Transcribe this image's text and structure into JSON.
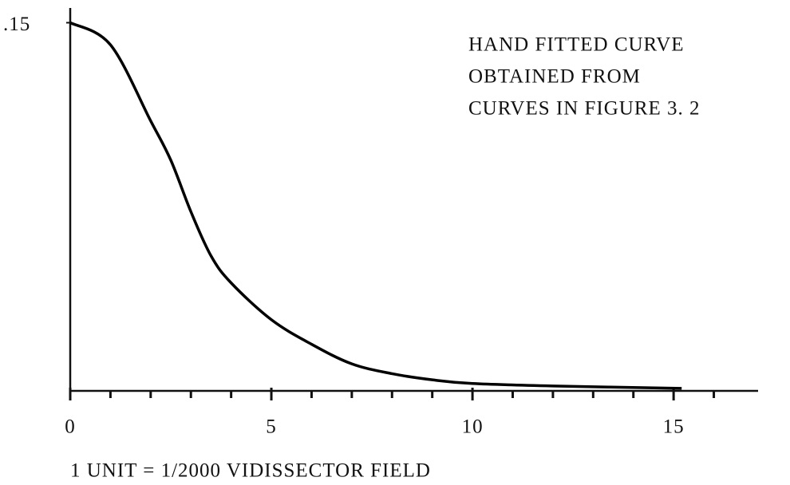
{
  "chart_data": {
    "type": "line",
    "annotation": [
      "HAND FITTED CURVE",
      "OBTAINED FROM",
      "CURVES IN FIGURE 3. 2"
    ],
    "x_label": "1 UNIT = 1/2000 VIDISSECTOR FIELD",
    "x": [
      0,
      1,
      2,
      2.5,
      3,
      3.5,
      4,
      5,
      6,
      7,
      8,
      9,
      10,
      12,
      15.2
    ],
    "values": [
      0.15,
      0.141,
      0.11,
      0.094,
      0.073,
      0.055,
      0.044,
      0.029,
      0.019,
      0.011,
      0.007,
      0.0045,
      0.003,
      0.002,
      0.001
    ],
    "color": "#000000",
    "xlim": [
      0,
      17.1
    ],
    "ylim": [
      0,
      0.156
    ],
    "xticks": [
      0,
      5,
      10,
      15
    ],
    "xminorticks": [
      1,
      2,
      3,
      4,
      6,
      7,
      8,
      9,
      11,
      12,
      13,
      14,
      16
    ],
    "yticks": [
      {
        "value": 0.15,
        "label": ".15"
      }
    ],
    "grid": false
  }
}
